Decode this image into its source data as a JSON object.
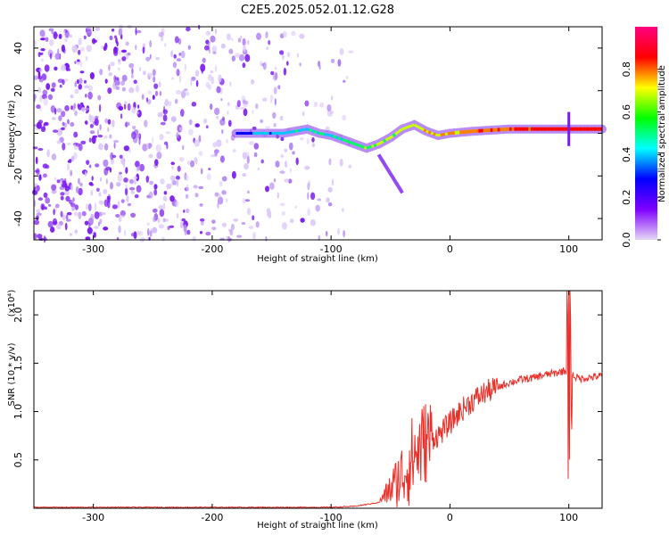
{
  "title": "C2E5.2025.052.01.12.G28",
  "chart_data": [
    {
      "type": "heatmap",
      "xlabel": "Height of straight line (km)",
      "ylabel": "Frequency (Hz)",
      "xlim": [
        -350,
        128
      ],
      "ylim": [
        -50,
        50
      ],
      "x_ticks": [
        "-300",
        "-200",
        "-100",
        "0",
        "100"
      ],
      "y_ticks": [
        "-40",
        "-20",
        "0",
        "20",
        "40"
      ],
      "colorbar": {
        "label": "Normalized spectral amplitude",
        "range": [
          0,
          1
        ],
        "ticks": [
          "0.0",
          "0.2",
          "0.4",
          "0.6",
          "0.8"
        ],
        "colormap": [
          "#e6d8f5",
          "#7f00ff",
          "#0000ff",
          "#00ffff",
          "#00ff00",
          "#ffff00",
          "#ff0000",
          "#ff0080"
        ]
      },
      "ridge": {
        "x": [
          -180,
          -160,
          -140,
          -120,
          -110,
          -100,
          -90,
          -80,
          -70,
          -60,
          -50,
          -40,
          -30,
          -20,
          -10,
          0,
          20,
          50,
          80,
          100,
          128
        ],
        "y": [
          0,
          0,
          0,
          2,
          0,
          -1,
          -3,
          -5,
          -7,
          -5,
          -2,
          2,
          4,
          1,
          -1,
          0,
          1,
          2,
          2,
          2,
          2
        ]
      }
    },
    {
      "type": "line",
      "xlabel": "Height of straight line (km)",
      "ylabel": "SNR (10 * v/v)",
      "y_multiplier": "(x10⁴)",
      "xlim": [
        -350,
        128
      ],
      "ylim": [
        0,
        2.25
      ],
      "x_ticks": [
        "-300",
        "-200",
        "-100",
        "0",
        "100"
      ],
      "y_ticks": [
        "0.5",
        "1.0",
        "1.5",
        "2.0"
      ],
      "series": [
        {
          "color": "#e8302a",
          "x": [
            -350,
            -300,
            -250,
            -200,
            -150,
            -100,
            -80,
            -60,
            -50,
            -40,
            -30,
            -20,
            -10,
            0,
            10,
            20,
            30,
            40,
            50,
            60,
            70,
            80,
            90,
            95,
            100,
            105,
            110,
            128
          ],
          "y": [
            0.01,
            0.01,
            0.01,
            0.01,
            0.01,
            0.01,
            0.02,
            0.06,
            0.2,
            0.35,
            0.55,
            0.7,
            0.75,
            0.88,
            1.02,
            1.12,
            1.2,
            1.25,
            1.3,
            1.33,
            1.35,
            1.38,
            1.4,
            1.42,
            1.42,
            1.36,
            1.34,
            1.37
          ]
        }
      ]
    }
  ]
}
